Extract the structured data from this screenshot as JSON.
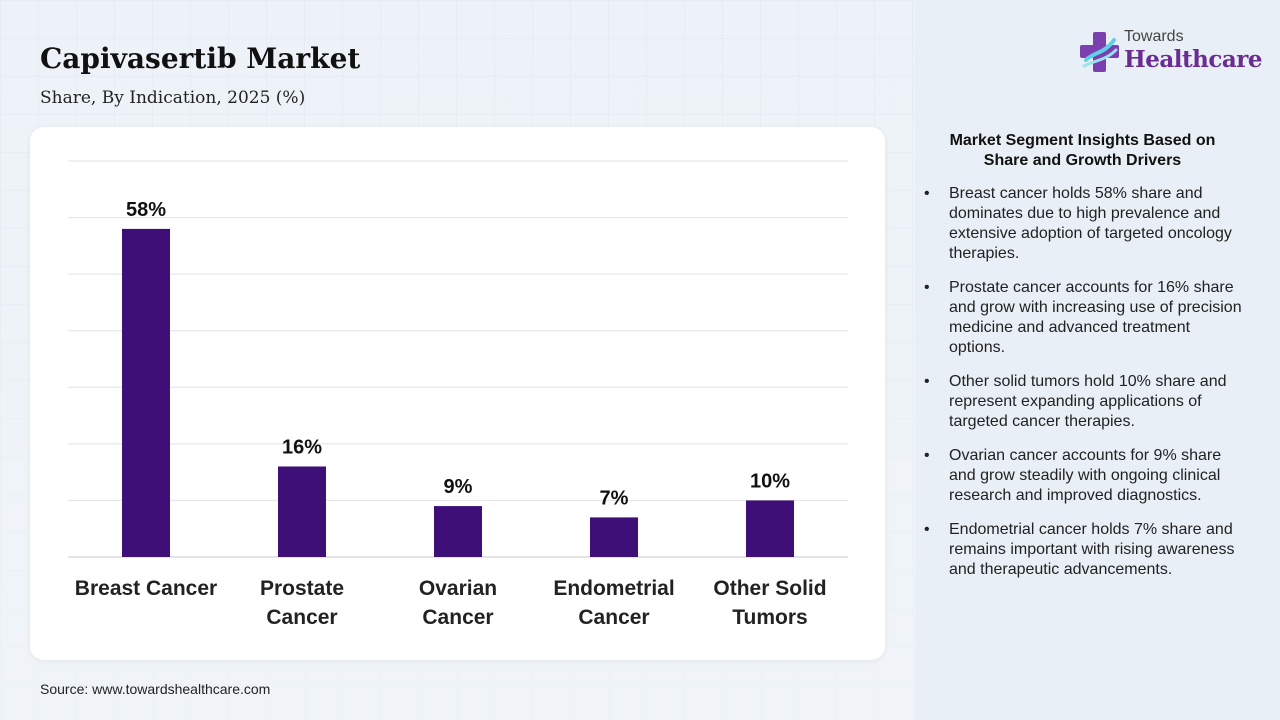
{
  "header": {
    "title": "Capivasertib Market",
    "subtitle": "Share, By Indication, 2025 (%)"
  },
  "logo": {
    "line1": "Towards",
    "line2": "Healthcare",
    "icon": "medical-cross-icon",
    "brand_color": "#6a2c91"
  },
  "chart_data": {
    "type": "bar",
    "categories": [
      "Breast Cancer",
      "Prostate Cancer",
      "Ovarian Cancer",
      "Endometrial Cancer",
      "Other Solid Tumors"
    ],
    "category_lines": [
      [
        "Breast Cancer"
      ],
      [
        "Prostate",
        "Cancer"
      ],
      [
        "Ovarian",
        "Cancer"
      ],
      [
        "Endometrial",
        "Cancer"
      ],
      [
        "Other Solid",
        "Tumors"
      ]
    ],
    "values": [
      58,
      16,
      9,
      7,
      10
    ],
    "data_labels": [
      "58%",
      "16%",
      "9%",
      "7%",
      "10%"
    ],
    "title": "Capivasertib Market",
    "subtitle": "Share, By Indication, 2025 (%)",
    "xlabel": "",
    "ylabel": "",
    "ylim": [
      0,
      70
    ],
    "grid": true,
    "legend": "none",
    "bar_color": "#3f0f78"
  },
  "insights": {
    "title_line1": "Market Segment Insights Based on",
    "title_line2": "Share and Growth Drivers",
    "bullet": "•",
    "items": [
      "Breast cancer holds 58% share and dominates due to high prevalence and extensive adoption of targeted oncology therapies.",
      "Prostate cancer accounts for 16% share and grow with increasing use of precision medicine and advanced treatment options.",
      "Other solid tumors hold 10% share and represent expanding applications of targeted cancer therapies.",
      "Ovarian cancer accounts for 9% share and grow steadily with ongoing clinical research and improved diagnostics.",
      "Endometrial cancer holds 7% share and remains important with rising awareness and therapeutic advancements."
    ]
  },
  "footer": {
    "source": "Source: www.towardshealthcare.com"
  }
}
